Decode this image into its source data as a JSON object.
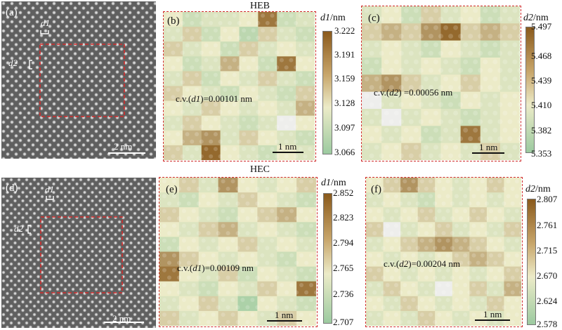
{
  "figure": {
    "row_titles": [
      "HEB",
      "HEC"
    ],
    "panels": [
      {
        "id": "a",
        "type": "stem",
        "label": "(a)",
        "d1_label": "d1",
        "d2_label": "d2",
        "scale_label": "2 nm"
      },
      {
        "id": "b",
        "type": "heatmap",
        "label": "(b)",
        "cv_prefix": "c.v.(",
        "cv_var": "d1",
        "cv_suffix": ")=0.00101 nm",
        "scale_label": "1 nm",
        "colorbar": {
          "var": "d1",
          "unit": "/nm",
          "ticks": [
            "3.222",
            "3.191",
            "3.159",
            "3.128",
            "3.097",
            "3.066"
          ]
        }
      },
      {
        "id": "c",
        "type": "heatmap",
        "label": "(c)",
        "cv_prefix": "c.v.(",
        "cv_var": "d2",
        "cv_suffix": ") =0.00056 nm",
        "scale_label": "1 nm",
        "colorbar": {
          "var": "d2",
          "unit": "/nm",
          "ticks": [
            "5.497",
            "5.468",
            "5.439",
            "5.410",
            "5.382",
            "5.353"
          ]
        }
      },
      {
        "id": "d",
        "type": "stem",
        "label": "(d)",
        "d1_label": "d1",
        "d2_label": "d2",
        "scale_label": "2 nm"
      },
      {
        "id": "e",
        "type": "heatmap",
        "label": "(e)",
        "cv_prefix": "c.v.(",
        "cv_var": "d1",
        "cv_suffix": ")=0.00109 nm",
        "scale_label": "1 nm",
        "colorbar": {
          "var": "d1",
          "unit": "/nm",
          "ticks": [
            "2.852",
            "2.823",
            "2.794",
            "2.765",
            "2.736",
            "2.707"
          ]
        }
      },
      {
        "id": "f",
        "type": "heatmap",
        "label": "(f)",
        "cv_prefix": "c.v.(",
        "cv_var": "d2",
        "cv_suffix": ")=0.00204 nm",
        "scale_label": "1 nm",
        "colorbar": {
          "var": "d2",
          "unit": "/nm",
          "ticks": [
            "2.807",
            "2.761",
            "2.715",
            "2.670",
            "2.624",
            "2.578"
          ]
        }
      }
    ],
    "colors": {
      "low": "#9ccaa0",
      "mid": "#ecebc8",
      "high": "#8a5a1c",
      "dash": "#d12b2b"
    }
  },
  "heatmaps": {
    "b": [
      [
        0.5,
        0.3,
        0.4,
        0.4,
        0.5,
        0.9,
        0.3,
        0.4
      ],
      [
        0.4,
        0.6,
        0.3,
        0.5,
        0.2,
        0.6,
        0.4,
        0.3
      ],
      [
        0.6,
        0.4,
        0.5,
        0.3,
        0.6,
        0.4,
        0.5,
        0.4
      ],
      [
        0.5,
        0.3,
        0.4,
        0.7,
        0.5,
        0.3,
        0.9,
        0.5
      ],
      [
        0.4,
        0.6,
        0.3,
        0.5,
        0.4,
        0.6,
        0.4,
        0.3
      ],
      [
        0.6,
        0.5,
        0.4,
        0.3,
        0.5,
        0.4,
        0.3,
        0.6
      ],
      [
        0.5,
        0.4,
        0.6,
        0.5,
        0.4,
        0.5,
        0.4,
        0.7
      ],
      [
        0.4,
        0.6,
        0.5,
        0.4,
        0.3,
        0.4,
        0.05,
        0.5
      ],
      [
        0.5,
        0.7,
        0.8,
        0.4,
        0.6,
        0.5,
        0.4,
        0.3
      ],
      [
        0.6,
        0.4,
        0.95,
        0.5,
        0.4,
        0.3,
        0.5,
        0.4
      ]
    ],
    "c": [
      [
        0.4,
        0.5,
        0.3,
        0.6,
        0.4,
        0.5,
        0.3,
        0.4
      ],
      [
        0.6,
        0.7,
        0.6,
        0.8,
        0.95,
        0.6,
        0.7,
        0.6
      ],
      [
        0.4,
        0.5,
        0.4,
        0.3,
        0.5,
        0.4,
        0.3,
        0.4
      ],
      [
        0.3,
        0.5,
        0.4,
        0.5,
        0.4,
        0.3,
        0.5,
        0.4
      ],
      [
        0.7,
        0.8,
        0.6,
        0.4,
        0.5,
        0.6,
        0.5,
        0.4
      ],
      [
        0.05,
        0.4,
        0.5,
        0.4,
        0.3,
        0.5,
        0.4,
        0.5
      ],
      [
        0.4,
        0.05,
        0.4,
        0.5,
        0.4,
        0.3,
        0.4,
        0.5
      ],
      [
        0.5,
        0.4,
        0.5,
        0.3,
        0.4,
        0.9,
        0.4,
        0.5
      ],
      [
        0.4,
        0.5,
        0.6,
        0.4,
        0.5,
        0.4,
        0.6,
        0.4
      ]
    ],
    "e": [
      [
        0.5,
        0.6,
        0.4,
        0.8,
        0.5,
        0.4,
        0.5,
        0.6
      ],
      [
        0.4,
        0.3,
        0.5,
        0.4,
        0.6,
        0.5,
        0.4,
        0.3
      ],
      [
        0.6,
        0.5,
        0.4,
        0.3,
        0.5,
        0.6,
        0.7,
        0.5
      ],
      [
        0.5,
        0.4,
        0.6,
        0.7,
        0.4,
        0.5,
        0.4,
        0.3
      ],
      [
        0.3,
        0.5,
        0.4,
        0.5,
        0.6,
        0.4,
        0.5,
        0.4
      ],
      [
        0.8,
        0.6,
        0.5,
        0.4,
        0.5,
        0.4,
        0.3,
        0.5
      ],
      [
        0.9,
        0.5,
        0.4,
        0.6,
        0.3,
        0.5,
        0.4,
        0.3
      ],
      [
        0.5,
        0.4,
        0.3,
        0.5,
        0.4,
        0.6,
        0.5,
        0.9
      ],
      [
        0.4,
        0.5,
        0.6,
        0.4,
        0.1,
        0.5,
        0.4,
        0.3
      ],
      [
        0.6,
        0.4,
        0.5,
        0.6,
        0.5,
        0.4,
        0.6,
        0.5
      ]
    ],
    "f": [
      [
        0.5,
        0.6,
        0.8,
        0.6,
        0.5,
        0.4,
        0.5,
        0.6,
        0.5
      ],
      [
        0.4,
        0.5,
        0.4,
        0.3,
        0.5,
        0.4,
        0.5,
        0.4,
        0.5
      ],
      [
        0.5,
        0.4,
        0.5,
        0.6,
        0.4,
        0.5,
        0.6,
        0.5,
        0.4
      ],
      [
        0.6,
        0.05,
        0.4,
        0.5,
        0.6,
        0.4,
        0.5,
        0.4,
        0.6
      ],
      [
        0.4,
        0.5,
        0.6,
        0.7,
        0.8,
        0.7,
        0.6,
        0.5,
        0.4
      ],
      [
        0.5,
        0.4,
        0.5,
        0.4,
        0.5,
        0.6,
        0.7,
        0.6,
        0.5
      ],
      [
        0.6,
        0.5,
        0.4,
        0.5,
        0.4,
        0.5,
        0.4,
        0.5,
        0.6
      ],
      [
        0.4,
        0.6,
        0.5,
        0.4,
        0.05,
        0.5,
        0.6,
        0.4,
        0.7
      ],
      [
        0.5,
        0.4,
        0.6,
        0.5,
        0.4,
        0.5,
        0.4,
        0.6,
        0.5
      ],
      [
        0.4,
        0.5,
        0.4,
        0.6,
        0.5,
        0.4,
        0.5,
        0.4,
        0.5
      ]
    ]
  }
}
